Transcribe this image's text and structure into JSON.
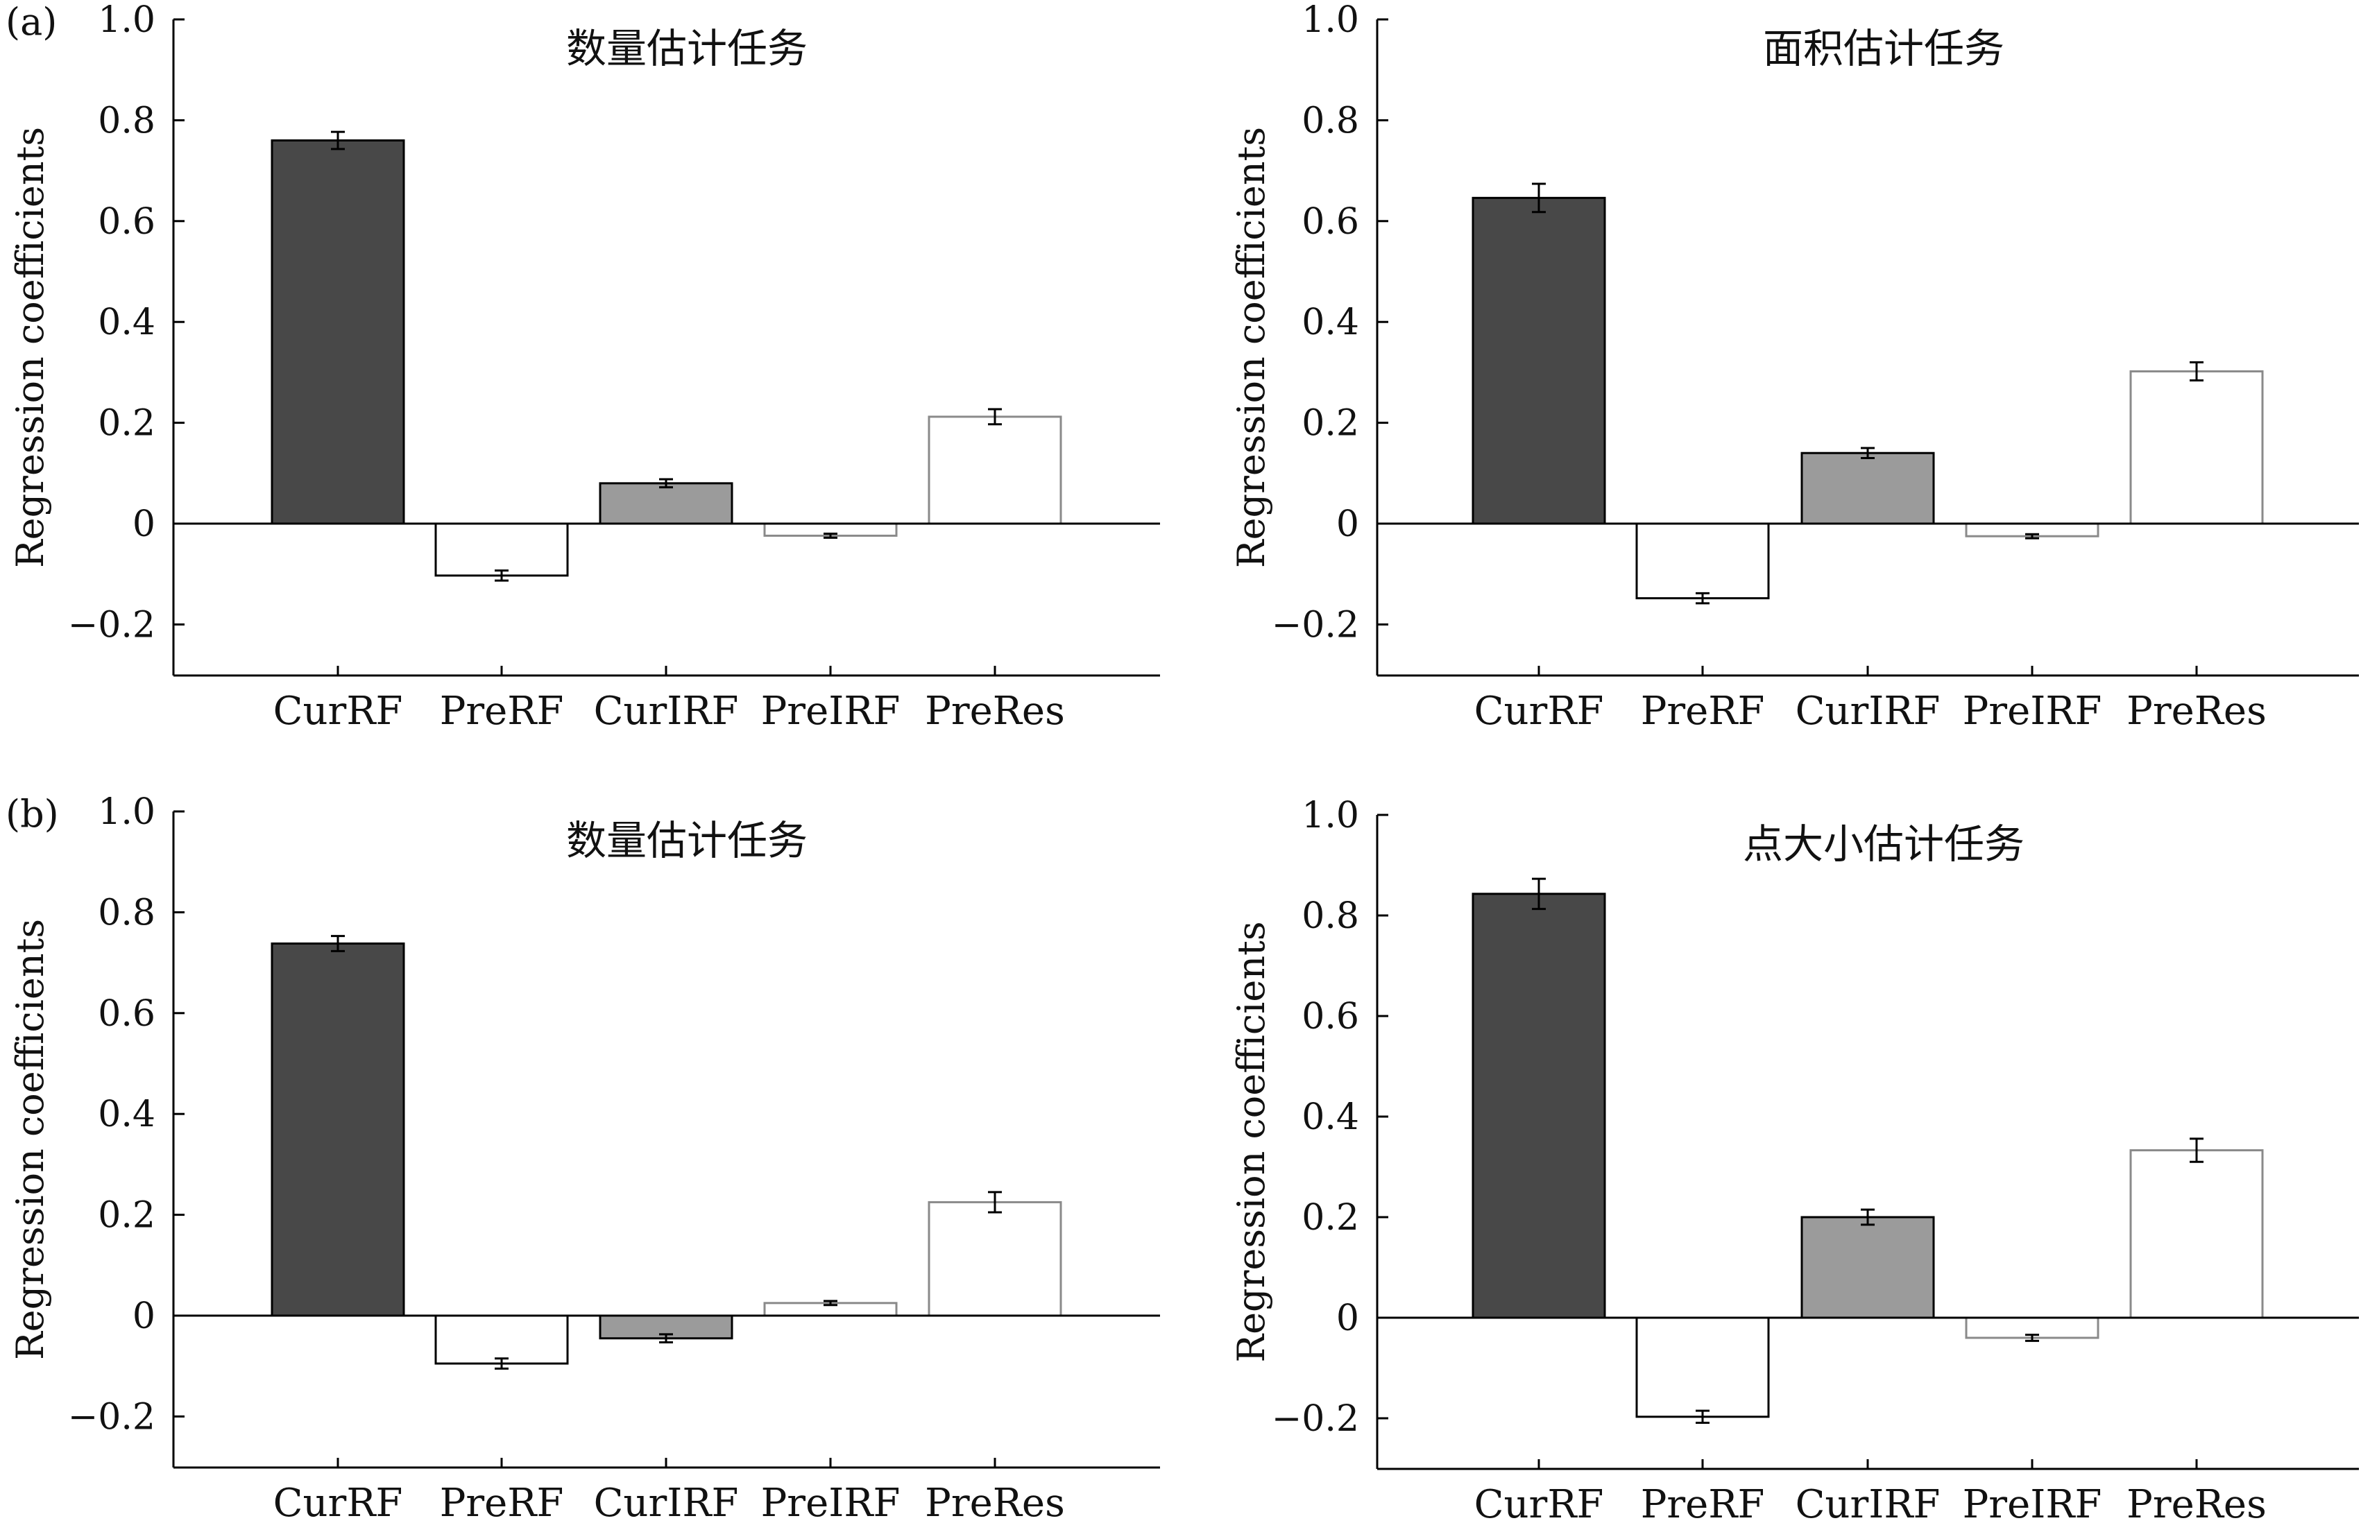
{
  "panel_labels": [
    "(a)",
    "(b)"
  ],
  "colors": {
    "dark": "#484848",
    "mid": "#9b9b9b",
    "white": "#ffffff",
    "axis": "#000000",
    "light_edge": "#8a8a8a"
  },
  "chart_data": [
    {
      "type": "bar",
      "title": "数量估计任务",
      "ylabel": "Regression coefficients",
      "ylim": [
        -0.3,
        1.0
      ],
      "yticks": [
        1.0,
        0.8,
        0.6,
        0.4,
        0.2,
        0,
        -0.2
      ],
      "ytick_labels": [
        "1.0",
        "0.8",
        "0.6",
        "0.4",
        "0.2",
        "0",
        "−0.2"
      ],
      "categories": [
        "CurRF",
        "PreRF",
        "CurIRF",
        "PreIRF",
        "PreRes"
      ],
      "values": [
        0.76,
        -0.103,
        0.08,
        -0.024,
        0.212
      ],
      "errors": [
        0.017,
        0.01,
        0.008,
        0.004,
        0.015
      ],
      "fills": [
        "dark",
        "white",
        "mid",
        "white",
        "white"
      ]
    },
    {
      "type": "bar",
      "title": "面积估计任务",
      "ylabel": "Regression coefficients",
      "ylim": [
        -0.3,
        1.0
      ],
      "yticks": [
        1.0,
        0.8,
        0.6,
        0.4,
        0.2,
        0,
        -0.2
      ],
      "ytick_labels": [
        "1.0",
        "0.8",
        "0.6",
        "0.4",
        "0.2",
        "0",
        "−0.2"
      ],
      "categories": [
        "CurRF",
        "PreRF",
        "CurIRF",
        "PreIRF",
        "PreRes"
      ],
      "values": [
        0.646,
        -0.148,
        0.14,
        -0.025,
        0.302
      ],
      "errors": [
        0.028,
        0.01,
        0.01,
        0.004,
        0.018
      ],
      "fills": [
        "dark",
        "white",
        "mid",
        "white",
        "white"
      ]
    },
    {
      "type": "bar",
      "title": "数量估计任务",
      "ylabel": "Regression coefficients",
      "ylim": [
        -0.3,
        1.0
      ],
      "yticks": [
        1.0,
        0.8,
        0.6,
        0.4,
        0.2,
        0,
        -0.2
      ],
      "ytick_labels": [
        "1.0",
        "0.8",
        "0.6",
        "0.4",
        "0.2",
        "0",
        "−0.2"
      ],
      "categories": [
        "CurRF",
        "PreRF",
        "CurIRF",
        "PreIRF",
        "PreRes"
      ],
      "values": [
        0.738,
        -0.095,
        -0.045,
        0.025,
        0.225
      ],
      "errors": [
        0.015,
        0.01,
        0.008,
        0.004,
        0.02
      ],
      "fills": [
        "dark",
        "white",
        "mid",
        "white",
        "white"
      ]
    },
    {
      "type": "bar",
      "title": "点大小估计任务",
      "ylabel": "Regression coefficients",
      "ylim": [
        -0.3,
        1.0
      ],
      "yticks": [
        1.0,
        0.8,
        0.6,
        0.4,
        0.2,
        0,
        -0.2
      ],
      "ytick_labels": [
        "1.0",
        "0.8",
        "0.6",
        "0.4",
        "0.2",
        "0",
        "−0.2"
      ],
      "categories": [
        "CurRF",
        "PreRF",
        "CurIRF",
        "PreIRF",
        "PreRes"
      ],
      "values": [
        0.843,
        -0.197,
        0.2,
        -0.04,
        0.333
      ],
      "errors": [
        0.03,
        0.012,
        0.015,
        0.006,
        0.023
      ],
      "fills": [
        "dark",
        "white",
        "mid",
        "white",
        "white"
      ]
    }
  ]
}
